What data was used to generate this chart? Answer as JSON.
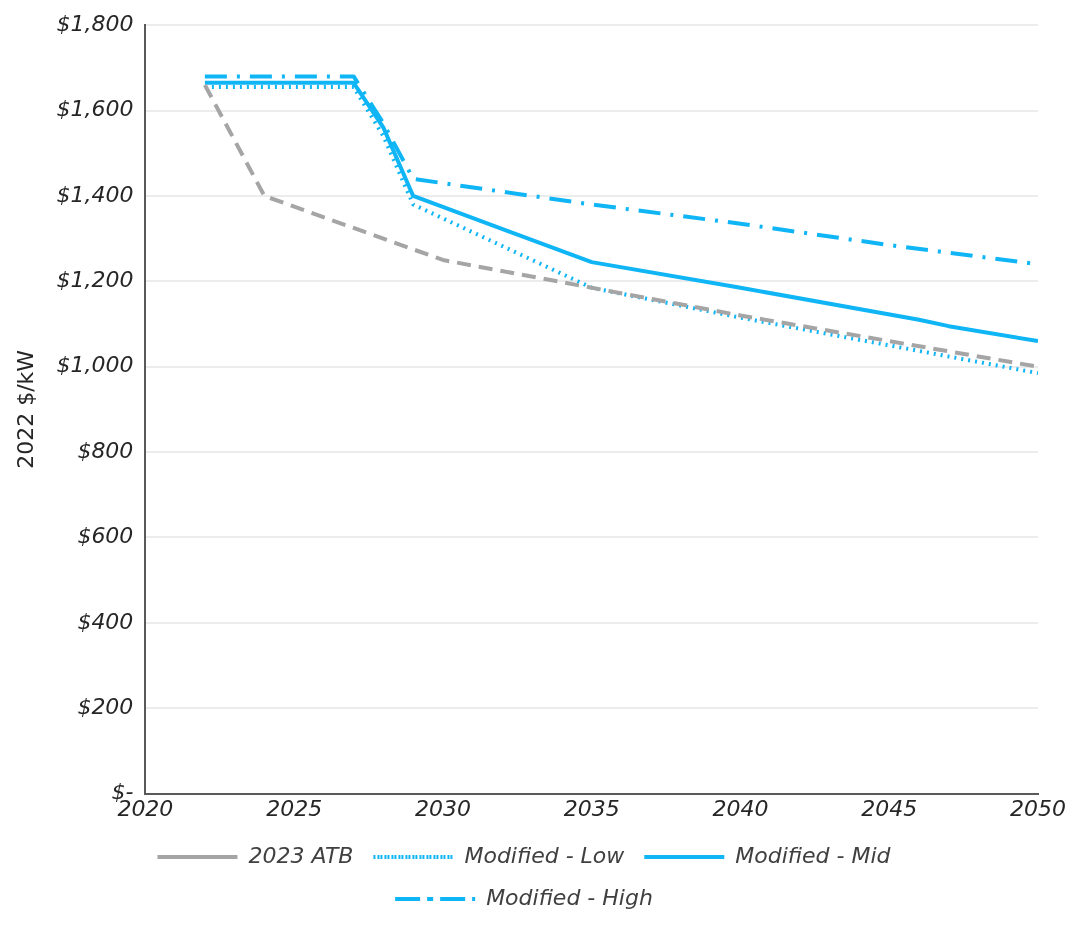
{
  "chart_data": {
    "type": "line",
    "ylabel": "2022 $/kW",
    "xlim": [
      2020,
      2050
    ],
    "xticks": [
      2020,
      2025,
      2030,
      2035,
      2040,
      2045,
      2050
    ],
    "ylim": [
      0,
      1800
    ],
    "yticks": [
      {
        "value": 0,
        "label": "$-"
      },
      {
        "value": 200,
        "label": "$200"
      },
      {
        "value": 400,
        "label": "$400"
      },
      {
        "value": 600,
        "label": "$600"
      },
      {
        "value": 800,
        "label": "$800"
      },
      {
        "value": 1000,
        "label": "$1,000"
      },
      {
        "value": 1200,
        "label": "$1,200"
      },
      {
        "value": 1400,
        "label": "$1,400"
      },
      {
        "value": 1600,
        "label": "$1,600"
      },
      {
        "value": 1800,
        "label": "$1,800"
      }
    ],
    "grid": "y",
    "legend": "bottom",
    "marker": "none",
    "series": [
      {
        "name": "2023 ATB",
        "color": "#a5a5a5",
        "line_style": "dashed",
        "x": [
          2022,
          2024,
          2030,
          2035,
          2040,
          2045,
          2050
        ],
        "values": [
          1660,
          1400,
          1250,
          1185,
          1120,
          1060,
          1000
        ]
      },
      {
        "name": "Modified - Low",
        "color": "#0fb5f5",
        "line_style": "dotted",
        "x": [
          2022,
          2027,
          2028,
          2029,
          2035,
          2040,
          2045,
          2050
        ],
        "values": [
          1655,
          1655,
          1540,
          1380,
          1185,
          1115,
          1050,
          985
        ]
      },
      {
        "name": "Modified - Mid",
        "color": "#0fb5f5",
        "line_style": "solid",
        "x": [
          2022,
          2027,
          2028,
          2029,
          2035,
          2040,
          2046,
          2047,
          2050
        ],
        "values": [
          1665,
          1665,
          1560,
          1400,
          1245,
          1185,
          1110,
          1095,
          1060
        ]
      },
      {
        "name": "Modified - High",
        "color": "#0fb5f5",
        "line_style": "dashdot",
        "x": [
          2022,
          2027,
          2028,
          2029,
          2035,
          2040,
          2045,
          2050
        ],
        "values": [
          1680,
          1680,
          1570,
          1440,
          1380,
          1335,
          1285,
          1240
        ]
      }
    ]
  }
}
